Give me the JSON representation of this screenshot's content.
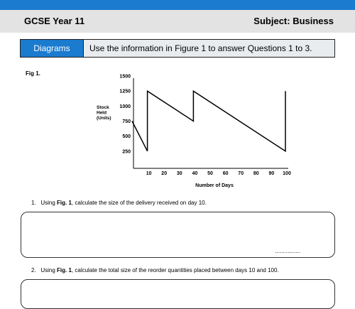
{
  "header": {
    "left_title": "GCSE Year 11",
    "right_title": "Subject: Business"
  },
  "colors": {
    "accent_blue": "#1a7bcf",
    "header_grey": "#e3e3e3"
  },
  "instruction": {
    "tab_label": "Diagrams",
    "text_pre": "Use the information in ",
    "text_bold": "Figure 1",
    "text_post": " to answer Questions 1 to 3."
  },
  "figure_label": "Fig 1.",
  "chart_data": {
    "type": "line",
    "title": "",
    "xlabel": "Number of Days",
    "ylabel_lines": [
      "Stock",
      "Held",
      "(Units)"
    ],
    "x_ticks": [
      10,
      20,
      30,
      40,
      50,
      60,
      70,
      80,
      90,
      100
    ],
    "y_ticks": [
      250,
      500,
      750,
      1000,
      1250,
      1500
    ],
    "xlim": [
      0,
      100
    ],
    "ylim": [
      0,
      1500
    ],
    "grid": false,
    "series": [
      {
        "x": [
          0,
          10,
          10,
          40,
          40,
          100,
          100
        ],
        "y": [
          750,
          250,
          1250,
          750,
          1250,
          250,
          1250
        ]
      }
    ]
  },
  "questions": [
    {
      "number": "1.",
      "pre": "Using ",
      "bold": "Fig. 1",
      "post": ", calculate the size of the delivery received on day 10.",
      "answer_dots": "................"
    },
    {
      "number": "2.",
      "pre": "Using ",
      "bold": "Fig. 1",
      "post": ", calculate the total size of the reorder quantities placed between days 10 and 100."
    }
  ]
}
